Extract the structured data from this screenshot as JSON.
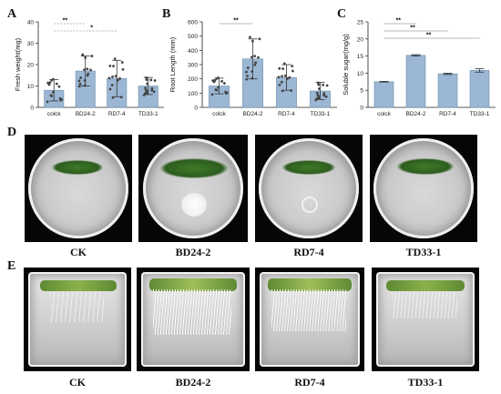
{
  "panels": {
    "a": "A",
    "b": "B",
    "c": "C",
    "d": "D",
    "e": "E"
  },
  "chart_data": [
    {
      "type": "bar",
      "title": "",
      "xlabel": "",
      "ylabel": "Fresh weight(mg)",
      "ylim": [
        0,
        40
      ],
      "yticks": [
        0,
        10,
        20,
        30,
        40
      ],
      "categories": [
        "colck",
        "BD24-2",
        "RD7-4",
        "TD33-1"
      ],
      "values": [
        8,
        17,
        13.5,
        10
      ],
      "errors": [
        5,
        7,
        8.5,
        4
      ],
      "significance": [
        "**",
        "*"
      ],
      "bar_color": "#9bb7d4"
    },
    {
      "type": "bar",
      "title": "",
      "xlabel": "",
      "ylabel": "Root Length (mm)",
      "ylim": [
        0,
        600
      ],
      "yticks": [
        0,
        100,
        200,
        300,
        400,
        500,
        600
      ],
      "categories": [
        "colck",
        "BD24-2",
        "RD7-4",
        "TD33-1"
      ],
      "values": [
        150,
        340,
        210,
        115
      ],
      "errors": [
        55,
        140,
        90,
        60
      ],
      "significance": [
        "**"
      ],
      "bar_color": "#9bb7d4"
    },
    {
      "type": "bar",
      "title": "",
      "xlabel": "",
      "ylabel": "Soluble sugar(mg/g)",
      "ylim": [
        0,
        25
      ],
      "yticks": [
        0,
        5,
        10,
        15,
        20,
        25
      ],
      "categories": [
        "colck",
        "BD24-2",
        "RD7-4",
        "TD33-1"
      ],
      "values": [
        7.5,
        15.2,
        9.8,
        10.8
      ],
      "errors": [
        0.1,
        0.2,
        0.2,
        0.5
      ],
      "significance": [
        "**",
        "**",
        "**"
      ],
      "bar_color": "#9bb7d4"
    }
  ],
  "photos": {
    "row_d_labels": [
      "CK",
      "BD24-2",
      "RD7-4",
      "TD33-1"
    ],
    "row_e_labels": [
      "CK",
      "BD24-2",
      "RD7-4",
      "TD33-1"
    ]
  }
}
